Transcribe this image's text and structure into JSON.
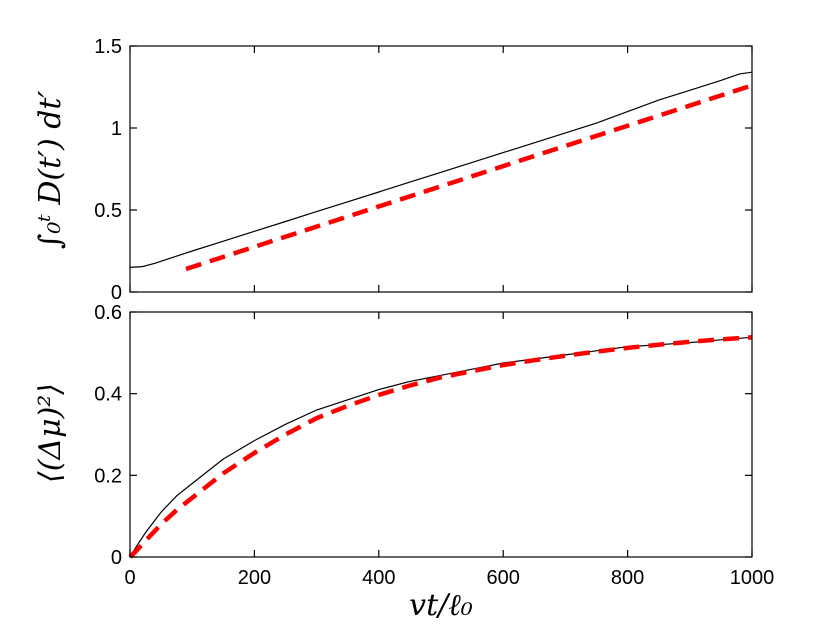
{
  "chart_data": [
    {
      "type": "line",
      "panel": "top",
      "title": "",
      "xlabel": "",
      "ylabel": "∫₀ᵗ D(t′) dt′",
      "xlim": [
        0,
        1000
      ],
      "ylim": [
        0,
        1.5
      ],
      "xticks": [
        0,
        200,
        400,
        600,
        800,
        1000
      ],
      "yticks": [
        0,
        0.5,
        1,
        1.5
      ],
      "yticklabels": [
        "0",
        "0.5",
        "1",
        "1.5"
      ],
      "show_xticklabels": false,
      "grid": false,
      "series": [
        {
          "style": "solid",
          "color": "#000000",
          "x": [
            0,
            20,
            40,
            60,
            80,
            100,
            150,
            200,
            250,
            300,
            350,
            400,
            450,
            500,
            550,
            600,
            650,
            700,
            750,
            800,
            850,
            900,
            950,
            980,
            1000
          ],
          "y": [
            0.15,
            0.155,
            0.175,
            0.2,
            0.225,
            0.25,
            0.31,
            0.37,
            0.43,
            0.49,
            0.55,
            0.61,
            0.67,
            0.73,
            0.79,
            0.85,
            0.91,
            0.97,
            1.03,
            1.1,
            1.17,
            1.23,
            1.29,
            1.33,
            1.34
          ]
        },
        {
          "style": "dashed",
          "color": "#ff0000",
          "x": [
            90,
            1000
          ],
          "y": [
            0.14,
            1.26
          ]
        }
      ]
    },
    {
      "type": "line",
      "panel": "bottom",
      "title": "",
      "xlabel": "vt/ℓ₀",
      "ylabel": "⟨(Δμ)²⟩",
      "xlim": [
        0,
        1000
      ],
      "ylim": [
        0,
        0.6
      ],
      "xticks": [
        0,
        200,
        400,
        600,
        800,
        1000
      ],
      "xticklabels": [
        "0",
        "200",
        "400",
        "600",
        "800",
        "1000"
      ],
      "yticks": [
        0,
        0.2,
        0.4,
        0.6
      ],
      "yticklabels": [
        "0",
        "0.2",
        "0.4",
        "0.6"
      ],
      "grid": false,
      "series": [
        {
          "style": "solid",
          "color": "#000000",
          "x": [
            0,
            10,
            25,
            50,
            75,
            100,
            150,
            200,
            250,
            300,
            350,
            400,
            450,
            500,
            550,
            600,
            650,
            700,
            750,
            800,
            850,
            900,
            950,
            1000
          ],
          "y": [
            0,
            0.025,
            0.06,
            0.11,
            0.15,
            0.18,
            0.24,
            0.285,
            0.325,
            0.36,
            0.385,
            0.41,
            0.43,
            0.445,
            0.46,
            0.475,
            0.485,
            0.495,
            0.505,
            0.515,
            0.52,
            0.525,
            0.532,
            0.538
          ]
        },
        {
          "style": "dashed",
          "color": "#ff0000",
          "x": [
            0,
            10,
            25,
            50,
            75,
            100,
            150,
            200,
            250,
            300,
            350,
            400,
            450,
            500,
            550,
            600,
            650,
            700,
            750,
            800,
            850,
            900,
            950,
            1000
          ],
          "y": [
            0,
            0.015,
            0.04,
            0.08,
            0.115,
            0.145,
            0.205,
            0.255,
            0.3,
            0.34,
            0.37,
            0.397,
            0.42,
            0.44,
            0.455,
            0.47,
            0.482,
            0.493,
            0.503,
            0.512,
            0.52,
            0.527,
            0.533,
            0.538
          ]
        }
      ]
    }
  ]
}
